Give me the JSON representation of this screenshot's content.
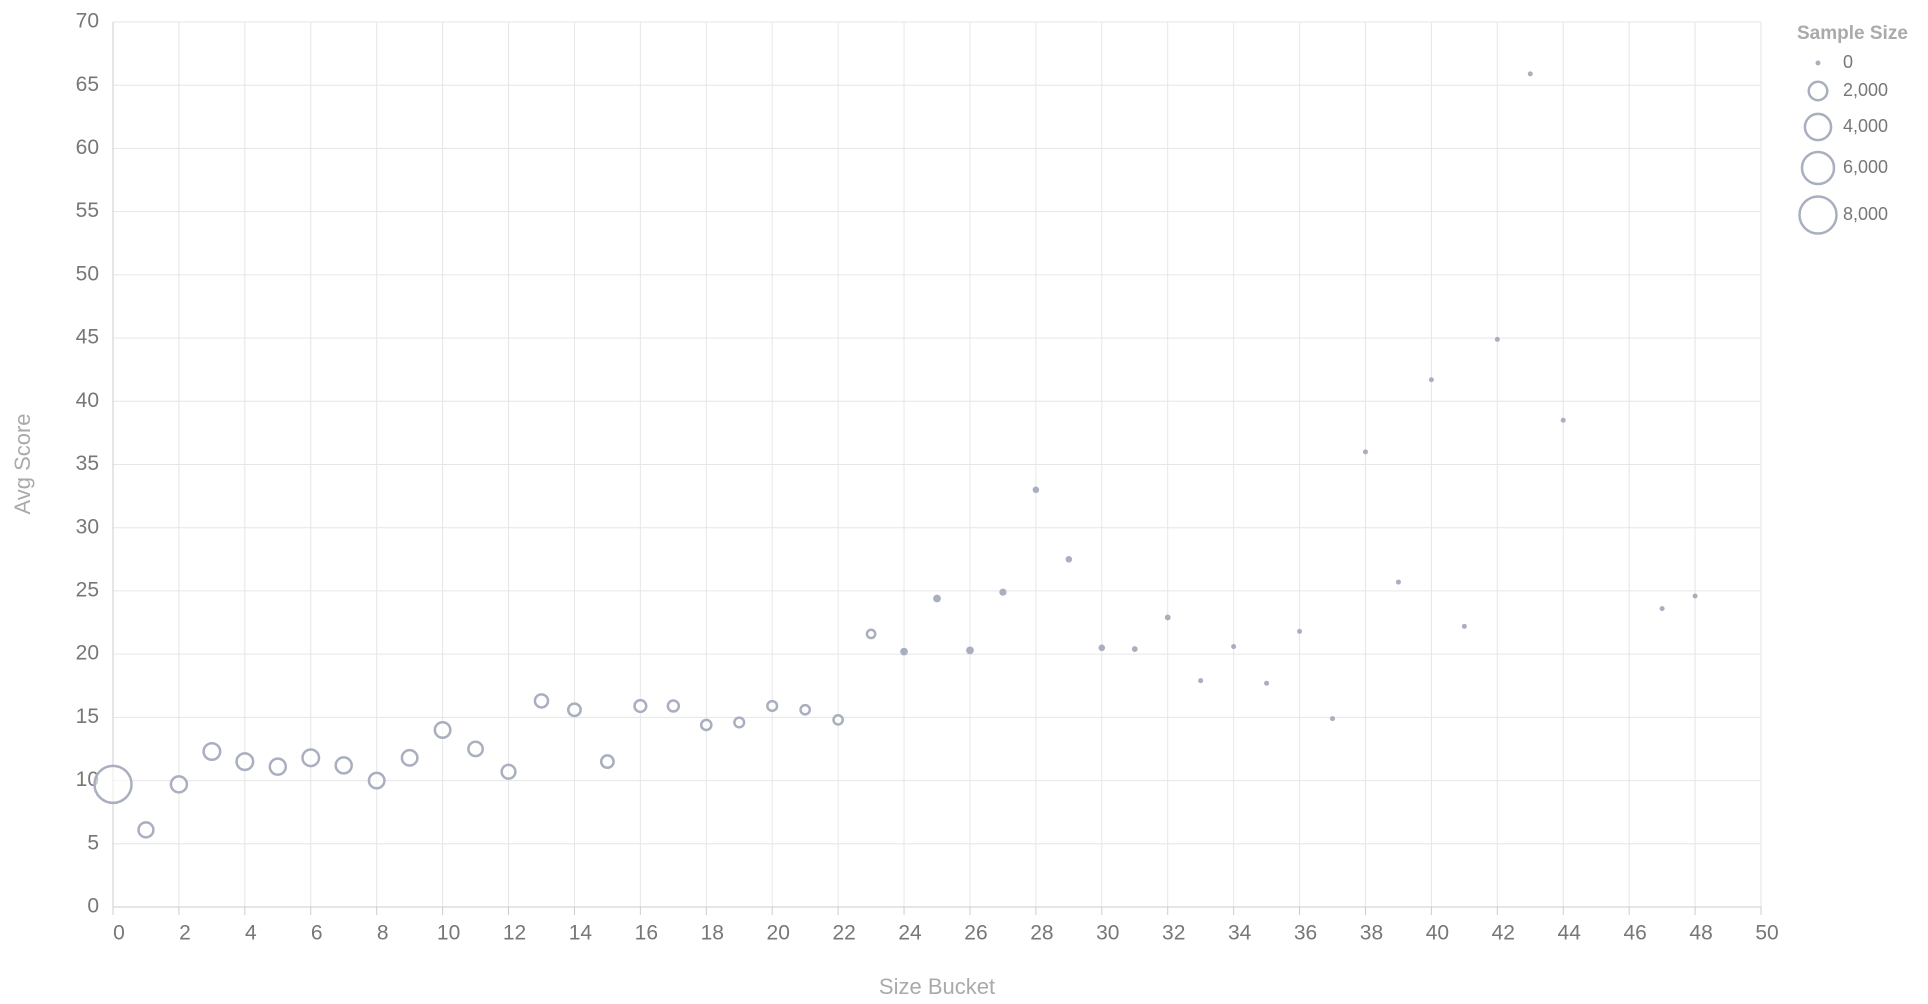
{
  "chart_data": {
    "type": "bubble",
    "x_label": "Size Bucket",
    "y_label": "Avg Score",
    "legend_title": "Sample Size",
    "color": "#a9afbf",
    "grid": true,
    "xlim": [
      0,
      50
    ],
    "ylim": [
      0,
      70
    ],
    "xticks": [
      0,
      2,
      4,
      6,
      8,
      10,
      12,
      14,
      16,
      18,
      20,
      22,
      24,
      26,
      28,
      30,
      32,
      34,
      36,
      38,
      40,
      42,
      44,
      46,
      48,
      50
    ],
    "yticks": [
      0,
      5,
      10,
      15,
      20,
      25,
      30,
      35,
      40,
      45,
      50,
      55,
      60,
      65,
      70
    ],
    "size_legend": [
      0,
      {
        "value": 2000,
        "label": "2,000"
      },
      {
        "value": 4000,
        "label": "4,000"
      },
      {
        "value": 6000,
        "label": "6,000"
      },
      {
        "value": 8000,
        "label": "8,000"
      }
    ],
    "x": [
      0,
      1,
      2,
      3,
      4,
      5,
      6,
      7,
      8,
      9,
      10,
      11,
      12,
      13,
      14,
      15,
      16,
      17,
      18,
      19,
      20,
      21,
      22,
      23,
      24,
      25,
      26,
      27,
      28,
      29,
      30,
      31,
      32,
      33,
      34,
      35,
      36,
      37,
      38,
      39,
      40,
      41,
      42,
      43,
      44,
      47,
      48
    ],
    "values": [
      9.7,
      6.1,
      9.7,
      12.3,
      11.5,
      11.1,
      11.8,
      11.2,
      10.0,
      11.8,
      14.0,
      12.5,
      10.7,
      16.3,
      15.6,
      11.5,
      15.9,
      15.9,
      14.4,
      14.6,
      15.9,
      15.6,
      14.8,
      21.6,
      20.2,
      24.4,
      20.3,
      24.9,
      33.0,
      27.5,
      20.5,
      20.4,
      22.9,
      17.9,
      20.6,
      17.7,
      21.8,
      14.9,
      36.0,
      25.7,
      41.7,
      22.2,
      44.9,
      65.9,
      38.5,
      23.6,
      24.6
    ],
    "sizes": [
      8000,
      1300,
      1500,
      1600,
      1600,
      1500,
      1600,
      1500,
      1400,
      1400,
      1400,
      1200,
      1100,
      1000,
      900,
      900,
      800,
      700,
      600,
      550,
      550,
      500,
      500,
      400,
      350,
      350,
      350,
      300,
      250,
      250,
      250,
      200,
      200,
      150,
      150,
      150,
      150,
      100,
      100,
      100,
      100,
      100,
      100,
      100,
      100,
      100,
      100
    ]
  }
}
